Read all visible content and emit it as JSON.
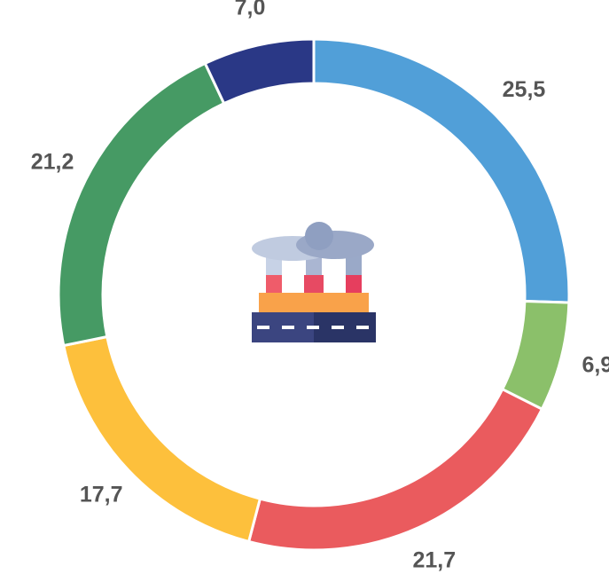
{
  "chart_data": {
    "type": "donut",
    "categories": [
      null,
      null,
      null,
      null,
      null,
      null
    ],
    "values": [
      25.5,
      6.9,
      21.7,
      17.7,
      21.2,
      7.0
    ],
    "value_labels": [
      "25,5",
      "6,9",
      "21,7",
      "17,7",
      "21,2",
      "7,0"
    ],
    "colors": [
      "#519fd8",
      "#8bc06a",
      "#ea5b5e",
      "#fdc03c",
      "#469a64",
      "#2a3886"
    ]
  }
}
